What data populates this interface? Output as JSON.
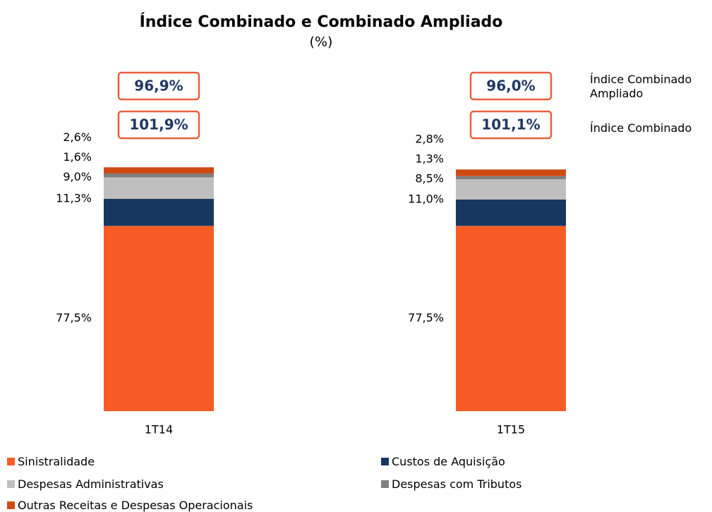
{
  "chart_data": {
    "type": "stacked_bar",
    "title": "Índice Combinado e Combinado Ampliado",
    "subtitle": "(%)",
    "categories": [
      "1T14",
      "1T15"
    ],
    "series": [
      {
        "name": "Sinistralidade",
        "color": "#f75c26",
        "values": [
          77.5,
          77.5
        ],
        "value_labels": [
          "77,5%",
          "77,5%"
        ]
      },
      {
        "name": "Custos de Aquisição",
        "color": "#17375e",
        "values": [
          11.3,
          11.0
        ],
        "value_labels": [
          "11,3%",
          "11,0%"
        ]
      },
      {
        "name": "Despesas Administrativas",
        "color": "#bfbfbf",
        "values": [
          9.0,
          8.5
        ],
        "value_labels": [
          "9,0%",
          "8,5%"
        ]
      },
      {
        "name": "Despesas com Tributos",
        "color": "#7f7f7f",
        "values": [
          1.6,
          1.3
        ],
        "value_labels": [
          "1,6%",
          "1,3%"
        ]
      },
      {
        "name": "Outras Receitas e Despesas Operacionais",
        "color": "#d04a14",
        "values": [
          2.6,
          2.8
        ],
        "value_labels": [
          "2,6%",
          "2,8%"
        ]
      }
    ],
    "indices": [
      {
        "name": "Índice Combinado Ampliado",
        "values": [
          96.9,
          96.0
        ],
        "value_labels": [
          "96,9%",
          "96,0%"
        ]
      },
      {
        "name": "Índice Combinado",
        "values": [
          101.9,
          101.1
        ],
        "value_labels": [
          "101,9%",
          "101,1%"
        ]
      }
    ]
  }
}
